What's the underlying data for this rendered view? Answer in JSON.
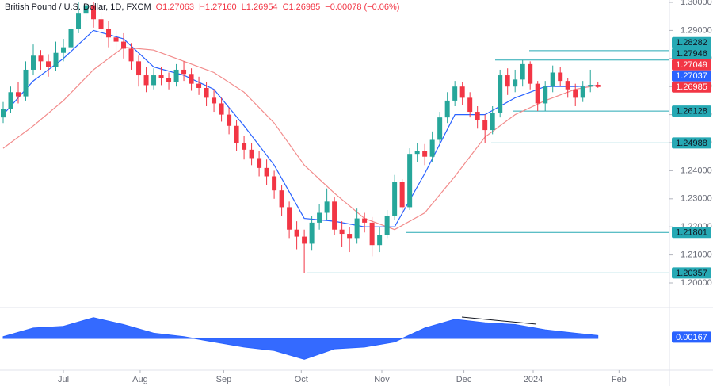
{
  "chart_data": {
    "type": "candlestick",
    "title": "British Pound / U.S. Dollar, 1D, FXCM",
    "ohlc_header": [
      "O1.27063",
      "H1.27160",
      "L1.26954",
      "C1.26985",
      "−0.00078 (−0.06%)"
    ],
    "up_color": "#26a69a",
    "down_color": "#f23645",
    "xlim": [
      -0.42,
      88.5
    ],
    "xticks": [
      {
        "value": 8,
        "label": "Jul"
      },
      {
        "value": 18.2,
        "label": "Aug"
      },
      {
        "value": 29.3,
        "label": "Sep"
      },
      {
        "value": 39.6,
        "label": "Oct"
      },
      {
        "value": 50.3,
        "label": "Nov"
      },
      {
        "value": 61.2,
        "label": "Dec"
      },
      {
        "value": 70.4,
        "label": "2024"
      },
      {
        "value": 81.8,
        "label": "Feb"
      }
    ],
    "ylim": [
      1.19209,
      1.30085
    ],
    "yticks": [
      {
        "value": 1.2,
        "label": "1.20000"
      },
      {
        "value": 1.21,
        "label": "1.21000"
      },
      {
        "value": 1.22,
        "label": "1.22000"
      },
      {
        "value": 1.23,
        "label": "1.23000"
      },
      {
        "value": 1.24,
        "label": "1.24000"
      },
      {
        "value": 1.25,
        "label": "1.25000"
      },
      {
        "value": 1.26,
        "label": "1.26000"
      },
      {
        "value": 1.27,
        "label": "1.27000"
      },
      {
        "value": 1.28,
        "label": "1.28000"
      },
      {
        "value": 1.29,
        "label": "1.29000"
      },
      {
        "value": 1.3,
        "label": "1.30000"
      }
    ],
    "candles": {
      "open": [
        1.259,
        1.262,
        1.268,
        1.2665,
        1.276,
        1.281,
        1.279,
        1.277,
        1.282,
        1.284,
        1.2905,
        1.296,
        1.299,
        1.294,
        1.2905,
        1.2875,
        1.286,
        1.2835,
        1.279,
        1.274,
        1.2705,
        1.274,
        1.273,
        1.2715,
        1.276,
        1.2745,
        1.271,
        1.2695,
        1.266,
        1.264,
        1.26,
        1.256,
        1.25,
        1.2475,
        1.2445,
        1.241,
        1.238,
        1.233,
        1.227,
        1.219,
        1.2165,
        1.214,
        1.2215,
        1.225,
        1.229,
        1.219,
        1.2175,
        1.216,
        1.223,
        1.2215,
        1.2135,
        1.217,
        1.224,
        1.236,
        1.227,
        1.246,
        1.247,
        1.245,
        1.251,
        1.259,
        1.265,
        1.27,
        1.266,
        1.261,
        1.258,
        1.2545,
        1.2605,
        1.274,
        1.27,
        1.2725,
        1.278,
        1.271,
        1.264,
        1.27,
        1.275,
        1.272,
        1.269,
        1.266,
        1.27,
        1.27063
      ],
      "high": [
        1.2645,
        1.27,
        1.2715,
        1.279,
        1.285,
        1.283,
        1.2815,
        1.286,
        1.287,
        1.293,
        1.3,
        1.3005,
        1.3,
        1.2965,
        1.2935,
        1.29,
        1.289,
        1.2855,
        1.281,
        1.277,
        1.2765,
        1.277,
        1.275,
        1.278,
        1.279,
        1.2765,
        1.2735,
        1.2715,
        1.269,
        1.266,
        1.2625,
        1.258,
        1.2525,
        1.25,
        1.247,
        1.244,
        1.24,
        1.235,
        1.229,
        1.222,
        1.219,
        1.224,
        1.228,
        1.2337,
        1.2305,
        1.222,
        1.22,
        1.2265,
        1.225,
        1.2235,
        1.22,
        1.226,
        1.2385,
        1.237,
        1.248,
        1.25,
        1.2495,
        1.254,
        1.261,
        1.268,
        1.272,
        1.2715,
        1.268,
        1.263,
        1.26,
        1.263,
        1.276,
        1.2765,
        1.276,
        1.2795,
        1.279,
        1.272,
        1.272,
        1.2775,
        1.277,
        1.273,
        1.271,
        1.272,
        1.276,
        1.2716
      ],
      "low": [
        1.257,
        1.2605,
        1.264,
        1.265,
        1.274,
        1.276,
        1.2735,
        1.2755,
        1.279,
        1.282,
        1.289,
        1.2935,
        1.291,
        1.287,
        1.284,
        1.282,
        1.28,
        1.276,
        1.27,
        1.268,
        1.269,
        1.2705,
        1.269,
        1.27,
        1.272,
        1.2685,
        1.267,
        1.263,
        1.261,
        1.2575,
        1.253,
        1.247,
        1.244,
        1.242,
        1.238,
        1.235,
        1.23,
        1.224,
        1.216,
        1.212,
        1.2036,
        1.2115,
        1.219,
        1.2225,
        1.217,
        1.213,
        1.211,
        1.214,
        1.218,
        1.2095,
        1.211,
        1.216,
        1.2225,
        1.225,
        1.226,
        1.243,
        1.242,
        1.243,
        1.2495,
        1.257,
        1.263,
        1.2635,
        1.259,
        1.255,
        1.2499,
        1.253,
        1.259,
        1.267,
        1.268,
        1.27,
        1.269,
        1.2613,
        1.2613,
        1.268,
        1.27,
        1.266,
        1.263,
        1.2645,
        1.268,
        1.26954
      ],
      "close": [
        1.262,
        1.268,
        1.2665,
        1.276,
        1.281,
        1.279,
        1.277,
        1.282,
        1.284,
        1.2905,
        1.296,
        1.299,
        1.294,
        1.2905,
        1.2875,
        1.286,
        1.2835,
        1.279,
        1.274,
        1.2705,
        1.274,
        1.273,
        1.2715,
        1.276,
        1.2745,
        1.271,
        1.2695,
        1.266,
        1.264,
        1.26,
        1.256,
        1.25,
        1.2475,
        1.2445,
        1.241,
        1.238,
        1.233,
        1.227,
        1.219,
        1.2165,
        1.214,
        1.2215,
        1.225,
        1.229,
        1.219,
        1.2175,
        1.216,
        1.223,
        1.2215,
        1.2135,
        1.217,
        1.224,
        1.236,
        1.227,
        1.246,
        1.247,
        1.245,
        1.251,
        1.259,
        1.265,
        1.27,
        1.266,
        1.261,
        1.258,
        1.2545,
        1.2605,
        1.274,
        1.27,
        1.2725,
        1.278,
        1.271,
        1.264,
        1.27,
        1.275,
        1.272,
        1.269,
        1.266,
        1.27,
        1.2706,
        1.26985
      ]
    },
    "series": [
      {
        "color": "#2962ff",
        "x": [
          0,
          4,
          8,
          12,
          16,
          20,
          24,
          28,
          32,
          36,
          40,
          44,
          48,
          52,
          56,
          60,
          64,
          68,
          72,
          76,
          79
        ],
        "values": [
          1.26,
          1.272,
          1.28,
          1.29,
          1.287,
          1.277,
          1.274,
          1.269,
          1.256,
          1.242,
          1.223,
          1.222,
          1.22,
          1.22,
          1.239,
          1.26,
          1.26,
          1.266,
          1.27,
          1.27,
          1.27037
        ]
      },
      {
        "color": "#f28b8b",
        "x": [
          0,
          4,
          8,
          12,
          16,
          20,
          24,
          28,
          32,
          36,
          40,
          44,
          48,
          52,
          56,
          60,
          64,
          68,
          72,
          76,
          79
        ],
        "values": [
          1.248,
          1.256,
          1.265,
          1.276,
          1.284,
          1.283,
          1.279,
          1.275,
          1.268,
          1.257,
          1.242,
          1.232,
          1.223,
          1.219,
          1.225,
          1.238,
          1.252,
          1.26,
          1.265,
          1.269,
          1.27049
        ]
      }
    ],
    "levels": [
      1.28282,
      1.27946,
      1.26128,
      1.24988,
      1.21801,
      1.20357
    ],
    "level_color": "#26a9b4",
    "oscillator": {
      "color": "#2962ff",
      "ylim": [
        -0.016,
        0.016
      ],
      "x": [
        0,
        4,
        8,
        12,
        16,
        20,
        24,
        28,
        32,
        36,
        40,
        44,
        48,
        52,
        56,
        60,
        64,
        68,
        72,
        76,
        79
      ],
      "values": [
        0.001,
        0.006,
        0.007,
        0.012,
        0.008,
        0.003,
        0.001,
        -0.002,
        -0.005,
        -0.007,
        -0.012,
        -0.006,
        -0.005,
        -0.002,
        0.006,
        0.011,
        0.009,
        0.008,
        0.005,
        0.003,
        0.00167
      ]
    }
  }
}
